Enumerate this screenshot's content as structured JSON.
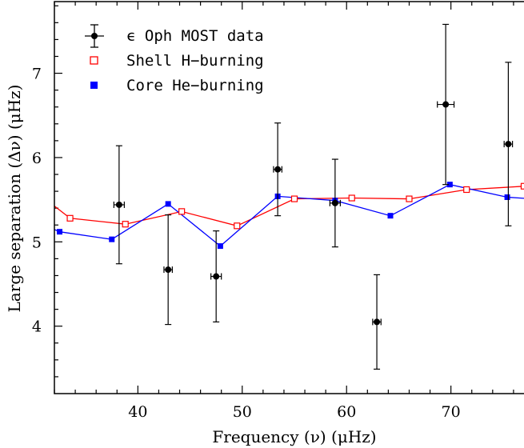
{
  "chart_data": {
    "type": "scatter",
    "xlabel": "Frequency (ν) (μHz)",
    "ylabel": "Large separation (Δν) (μHz)",
    "xlim": [
      32,
      78
    ],
    "ylim": [
      3.2,
      7.85
    ],
    "x_ticks": [
      40,
      50,
      60,
      70
    ],
    "y_ticks": [
      4,
      5,
      6,
      7
    ],
    "x_tick_labels": [
      "40",
      "50",
      "60",
      "70"
    ],
    "y_tick_labels": [
      "4",
      "5",
      "6",
      "7"
    ],
    "legend_position": "top-left",
    "series": [
      {
        "name": "ϵ Oph MOST data",
        "color": "#000000",
        "marker": "filled-circle",
        "points": [
          {
            "x": 38.2,
            "y": 5.44,
            "xerr": 0.5,
            "yerr_low": 0.7,
            "yerr_high": 0.7
          },
          {
            "x": 42.9,
            "y": 4.67,
            "xerr": 0.4,
            "yerr_low": 0.65,
            "yerr_high": 0.65
          },
          {
            "x": 47.5,
            "y": 4.59,
            "xerr": 0.5,
            "yerr_low": 0.54,
            "yerr_high": 0.54
          },
          {
            "x": 53.4,
            "y": 5.86,
            "xerr": 0.4,
            "yerr_low": 0.55,
            "yerr_high": 0.55
          },
          {
            "x": 58.9,
            "y": 5.46,
            "xerr": 0.5,
            "yerr_low": 0.52,
            "yerr_high": 0.52
          },
          {
            "x": 62.9,
            "y": 4.05,
            "xerr": 0.4,
            "yerr_low": 0.56,
            "yerr_high": 0.56
          },
          {
            "x": 69.5,
            "y": 6.63,
            "xerr": 0.8,
            "yerr_low": 0.95,
            "yerr_high": 0.95
          },
          {
            "x": 75.5,
            "y": 6.16,
            "xerr": 0.4,
            "yerr_low": 0.97,
            "yerr_high": 0.97
          }
        ]
      },
      {
        "name": "Shell H−burning",
        "color": "#ff0000",
        "marker": "open-square",
        "points": [
          {
            "x": 33.5,
            "y": 5.28
          },
          {
            "x": 38.8,
            "y": 5.21
          },
          {
            "x": 44.2,
            "y": 5.36
          },
          {
            "x": 49.5,
            "y": 5.19
          },
          {
            "x": 55.0,
            "y": 5.51
          },
          {
            "x": 60.5,
            "y": 5.52
          },
          {
            "x": 66.0,
            "y": 5.51
          },
          {
            "x": 71.5,
            "y": 5.62
          },
          {
            "x": 77.0,
            "y": 5.66
          }
        ]
      },
      {
        "name": "Core He−burning",
        "color": "#0000ff",
        "marker": "filled-square",
        "points": [
          {
            "x": 32.5,
            "y": 5.12
          },
          {
            "x": 37.5,
            "y": 5.03
          },
          {
            "x": 42.9,
            "y": 5.45
          },
          {
            "x": 47.9,
            "y": 4.95
          },
          {
            "x": 53.4,
            "y": 5.54
          },
          {
            "x": 58.9,
            "y": 5.49
          },
          {
            "x": 64.2,
            "y": 5.31
          },
          {
            "x": 69.9,
            "y": 5.68
          },
          {
            "x": 75.4,
            "y": 5.53
          }
        ]
      }
    ]
  }
}
